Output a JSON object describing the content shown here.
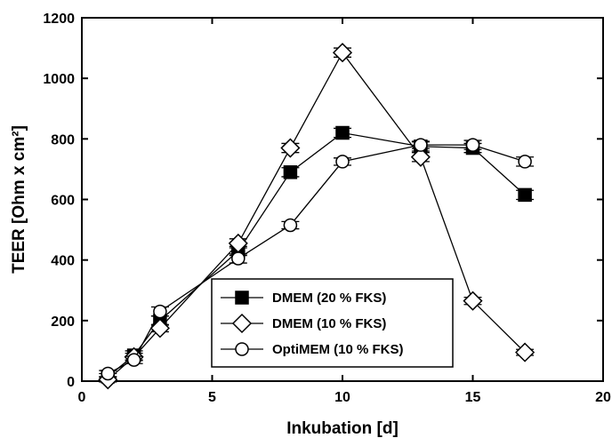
{
  "chart_data": {
    "type": "line",
    "xlabel": "Inkubation [d]",
    "ylabel": "TEER [Ohm x cm²]",
    "xlim": [
      0,
      20
    ],
    "ylim": [
      0,
      1200
    ],
    "xticks": [
      0,
      5,
      10,
      15,
      20
    ],
    "yticks": [
      0,
      200,
      400,
      600,
      800,
      1000,
      1200
    ],
    "legend_position": "bottom-center",
    "series": [
      {
        "name": "DMEM (20 % FKS)",
        "marker": "filled-square",
        "x": [
          1,
          2,
          3,
          6,
          8,
          10,
          13,
          15,
          17
        ],
        "y": [
          15,
          85,
          200,
          430,
          690,
          820,
          775,
          770,
          615
        ],
        "err": [
          10,
          15,
          15,
          15,
          15,
          15,
          15,
          15,
          15
        ]
      },
      {
        "name": "DMEM (10 % FKS)",
        "marker": "open-diamond",
        "x": [
          1,
          2,
          3,
          6,
          8,
          10,
          13,
          15,
          17
        ],
        "y": [
          5,
          80,
          175,
          455,
          770,
          1085,
          740,
          265,
          95
        ],
        "err": [
          8,
          12,
          12,
          15,
          15,
          15,
          15,
          12,
          10
        ]
      },
      {
        "name": "OptiMEM (10 % FKS)",
        "marker": "open-circle",
        "x": [
          1,
          2,
          3,
          6,
          8,
          10,
          13,
          15,
          17
        ],
        "y": [
          25,
          70,
          230,
          405,
          515,
          725,
          780,
          780,
          725
        ],
        "err": [
          10,
          12,
          15,
          15,
          12,
          12,
          12,
          15,
          15
        ]
      }
    ]
  }
}
